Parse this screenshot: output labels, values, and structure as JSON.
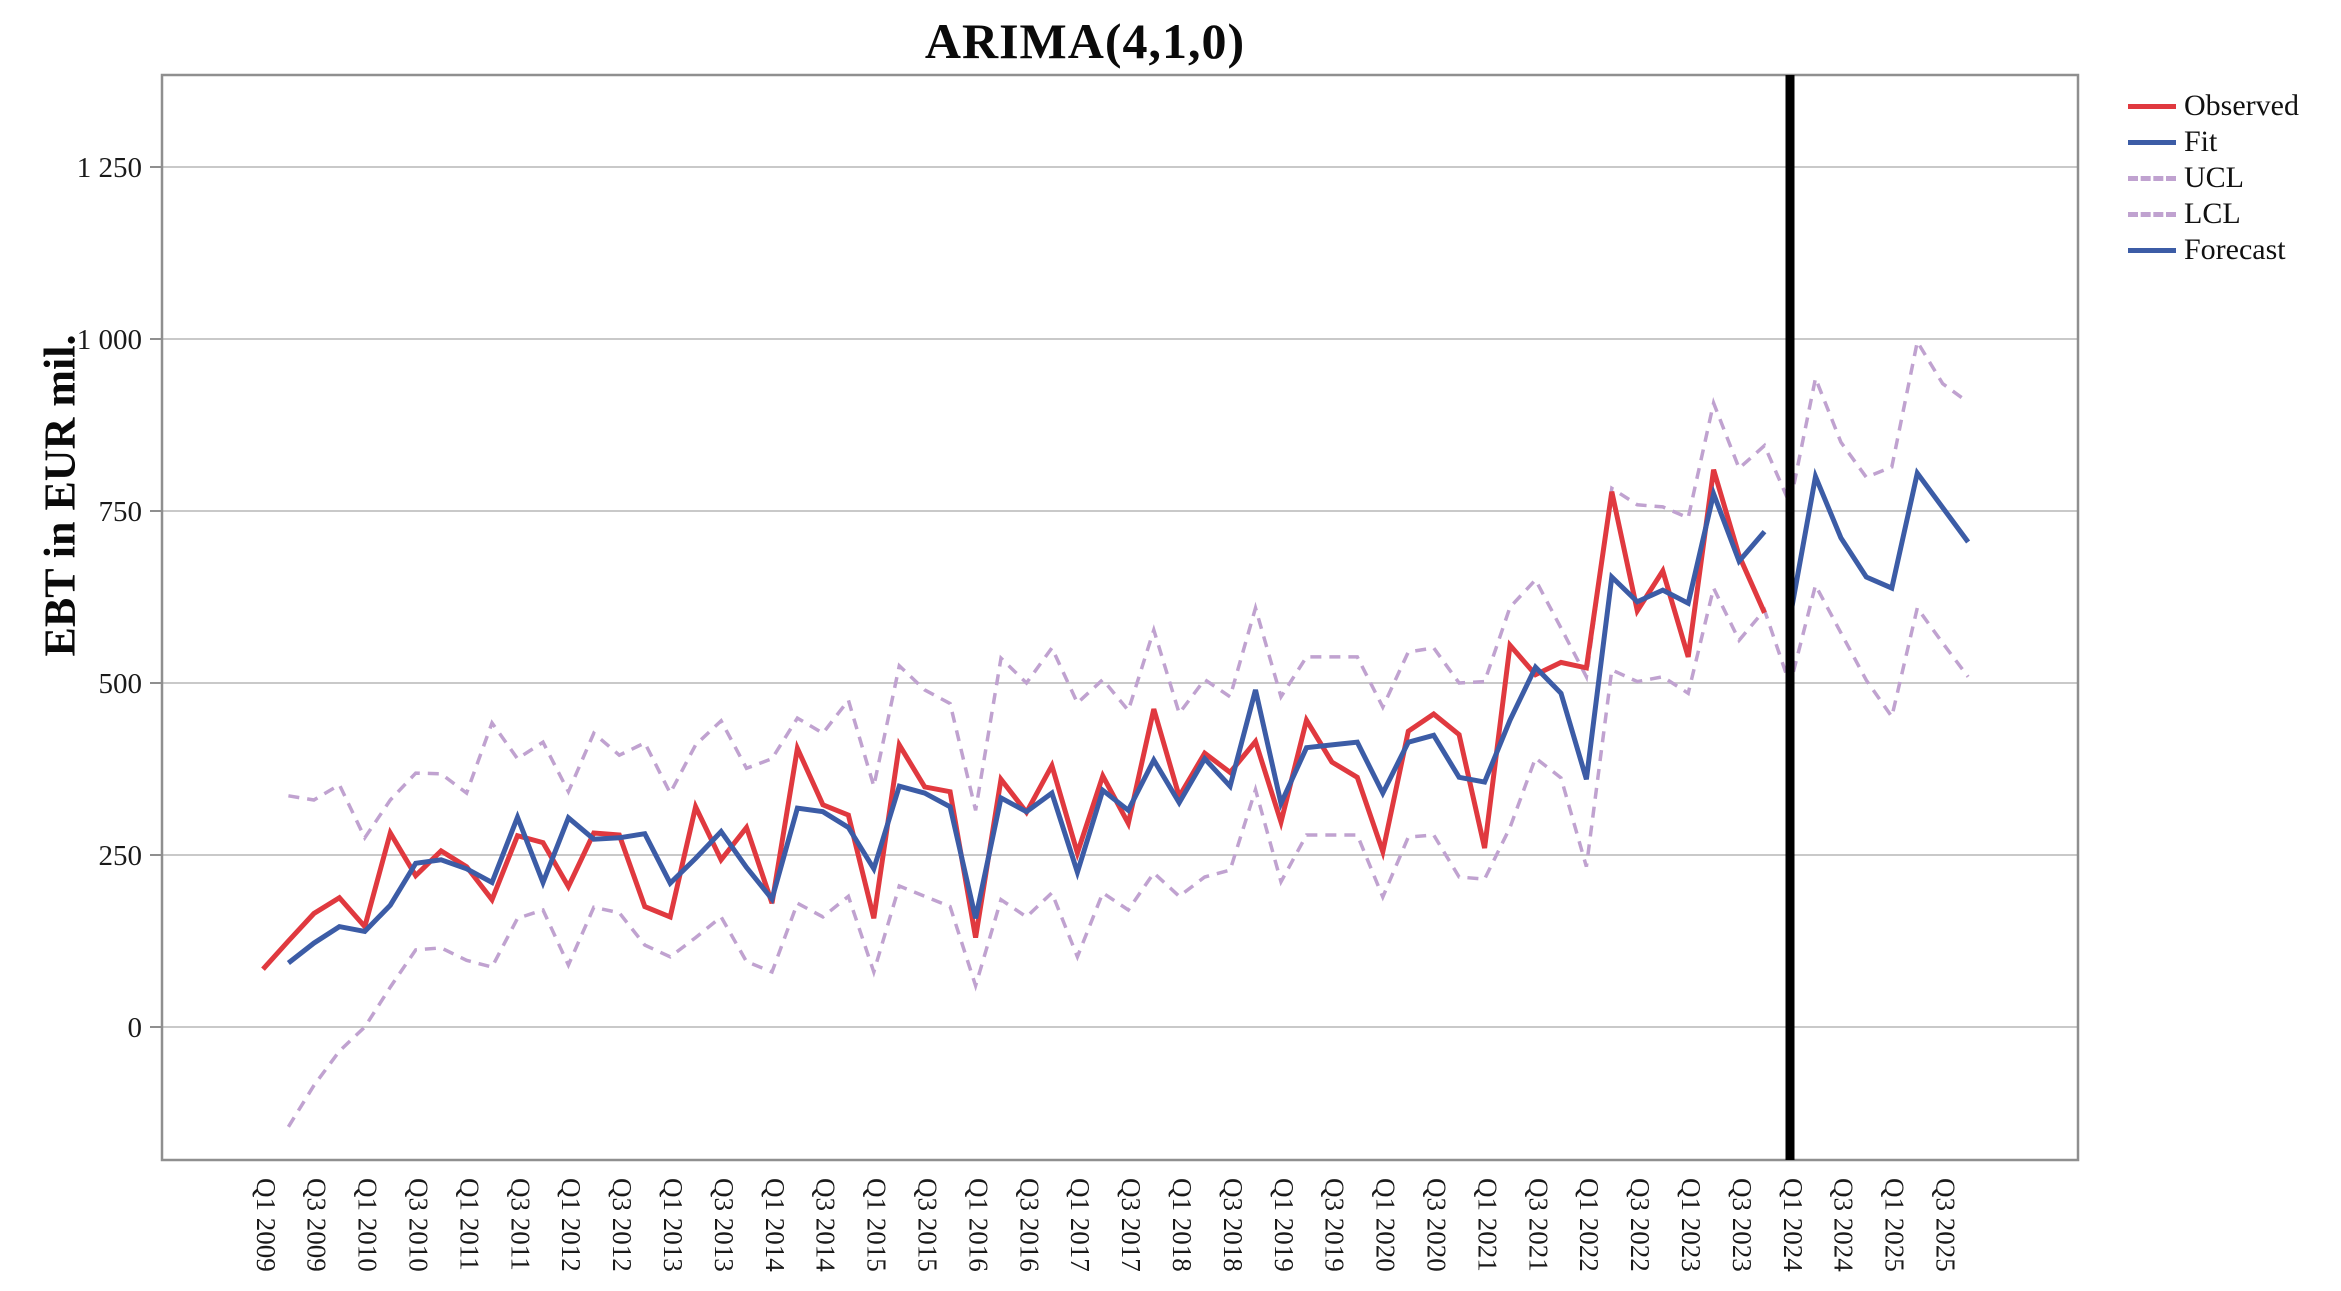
{
  "chart": {
    "title": "ARIMA(4,1,0)",
    "ylabel": "EBT in EUR mil.",
    "legend": [
      {
        "label": "Observed",
        "color": "#e0393f",
        "dash": false
      },
      {
        "label": "Fit",
        "color": "#3c5ca6",
        "dash": false
      },
      {
        "label": "UCL",
        "color": "#c0a2d0",
        "dash": true
      },
      {
        "label": "LCL",
        "color": "#c0a2d0",
        "dash": true
      },
      {
        "label": "Forecast",
        "color": "#3c5ca6",
        "dash": false
      }
    ],
    "colors": {
      "observed": "#e0393f",
      "fit": "#3c5ca6",
      "forecast": "#3c5ca6",
      "confidence": "#c0a2d0",
      "separator": "#000000",
      "gridline": "#c9c9c9",
      "frame": "#8f8f8f",
      "tick_text": "#1a1a1a"
    }
  },
  "chart_data": {
    "type": "line",
    "title": "ARIMA(4,1,0)",
    "xlabel": "",
    "ylabel": "EBT in EUR mil.",
    "legend_position": "top-right-outside",
    "grid": "horizontal",
    "ylim": [
      -195,
      1385
    ],
    "y_ticks": [
      {
        "value": 0,
        "label": "0"
      },
      {
        "value": 250,
        "label": "250"
      },
      {
        "value": 500,
        "label": "500"
      },
      {
        "value": 750,
        "label": "750"
      },
      {
        "value": 1000,
        "label": "1 000"
      },
      {
        "value": 1250,
        "label": "1 250"
      }
    ],
    "x_categories": [
      "Q1 2009",
      "Q2 2009",
      "Q3 2009",
      "Q4 2009",
      "Q1 2010",
      "Q2 2010",
      "Q3 2010",
      "Q4 2010",
      "Q1 2011",
      "Q2 2011",
      "Q3 2011",
      "Q4 2011",
      "Q1 2012",
      "Q2 2012",
      "Q3 2012",
      "Q4 2012",
      "Q1 2013",
      "Q2 2013",
      "Q3 2013",
      "Q4 2013",
      "Q1 2014",
      "Q2 2014",
      "Q3 2014",
      "Q4 2014",
      "Q1 2015",
      "Q2 2015",
      "Q3 2015",
      "Q4 2015",
      "Q1 2016",
      "Q2 2016",
      "Q3 2016",
      "Q4 2016",
      "Q1 2017",
      "Q2 2017",
      "Q3 2017",
      "Q4 2017",
      "Q1 2018",
      "Q2 2018",
      "Q3 2018",
      "Q4 2018",
      "Q1 2019",
      "Q2 2019",
      "Q3 2019",
      "Q4 2019",
      "Q1 2020",
      "Q2 2020",
      "Q3 2020",
      "Q4 2020",
      "Q1 2021",
      "Q2 2021",
      "Q3 2021",
      "Q4 2021",
      "Q1 2022",
      "Q2 2022",
      "Q3 2022",
      "Q4 2022",
      "Q1 2023",
      "Q2 2023",
      "Q3 2023",
      "Q4 2023",
      "Q1 2024",
      "Q2 2024",
      "Q3 2024",
      "Q4 2024",
      "Q1 2025",
      "Q2 2025",
      "Q3 2025",
      "Q4 2025"
    ],
    "x_tick_step": 2,
    "separator_at": "Q1 2024",
    "series": [
      {
        "name": "Observed",
        "style": "solid",
        "color": "#e0393f",
        "start": 0,
        "values": [
          84,
          125,
          165,
          188,
          146,
          282,
          220,
          256,
          233,
          185,
          278,
          268,
          204,
          282,
          279,
          175,
          160,
          320,
          243,
          290,
          180,
          405,
          323,
          308,
          158,
          410,
          349,
          342,
          130,
          360,
          312,
          380,
          253,
          365,
          296,
          462,
          335,
          398,
          370,
          415,
          298,
          446,
          385,
          363,
          255,
          430,
          455,
          425,
          260,
          555,
          512,
          530,
          522,
          778,
          605,
          663,
          538,
          810,
          685,
          602
        ]
      },
      {
        "name": "Fit",
        "style": "solid",
        "color": "#3c5ca6",
        "start": 1,
        "values": [
          93,
          122,
          146,
          139,
          177,
          238,
          243,
          230,
          210,
          305,
          210,
          304,
          273,
          275,
          281,
          209,
          245,
          284,
          232,
          186,
          318,
          313,
          290,
          230,
          350,
          340,
          320,
          158,
          333,
          313,
          340,
          225,
          344,
          315,
          388,
          326,
          390,
          350,
          490,
          325,
          406,
          410,
          414,
          340,
          414,
          424,
          363,
          356,
          446,
          523,
          485,
          360,
          654,
          618,
          635,
          616,
          775,
          677,
          720
        ]
      },
      {
        "name": "UCL",
        "style": "dashed",
        "color": "#c0a2d0",
        "start": 1,
        "values": [
          336,
          330,
          352,
          275,
          330,
          369,
          368,
          340,
          442,
          390,
          414,
          342,
          427,
          395,
          413,
          340,
          410,
          445,
          376,
          390,
          449,
          427,
          475,
          350,
          525,
          490,
          470,
          315,
          536,
          500,
          551,
          471,
          505,
          460,
          577,
          456,
          505,
          480,
          609,
          480,
          538,
          538,
          538,
          465,
          545,
          551,
          500,
          502,
          610,
          650,
          580,
          509,
          783,
          759,
          756,
          740,
          907,
          812,
          845,
          760,
          943,
          850,
          799,
          814,
          996,
          935,
          908
        ]
      },
      {
        "name": "LCL",
        "style": "dashed",
        "color": "#c0a2d0",
        "start": 1,
        "values": [
          -145,
          -85,
          -35,
          0,
          58,
          112,
          115,
          97,
          87,
          158,
          170,
          90,
          174,
          166,
          119,
          102,
          130,
          160,
          95,
          80,
          180,
          160,
          190,
          80,
          205,
          190,
          175,
          60,
          185,
          160,
          195,
          102,
          195,
          170,
          224,
          190,
          218,
          228,
          345,
          211,
          279,
          279,
          279,
          189,
          276,
          279,
          218,
          215,
          290,
          391,
          362,
          233,
          519,
          502,
          509,
          485,
          638,
          562,
          606,
          497,
          642,
          573,
          504,
          451,
          609,
          558,
          509
        ]
      },
      {
        "name": "Forecast",
        "style": "solid",
        "color": "#3c5ca6",
        "start": 60,
        "values": [
          595,
          800,
          711,
          654,
          638,
          805,
          755,
          705
        ]
      }
    ]
  }
}
